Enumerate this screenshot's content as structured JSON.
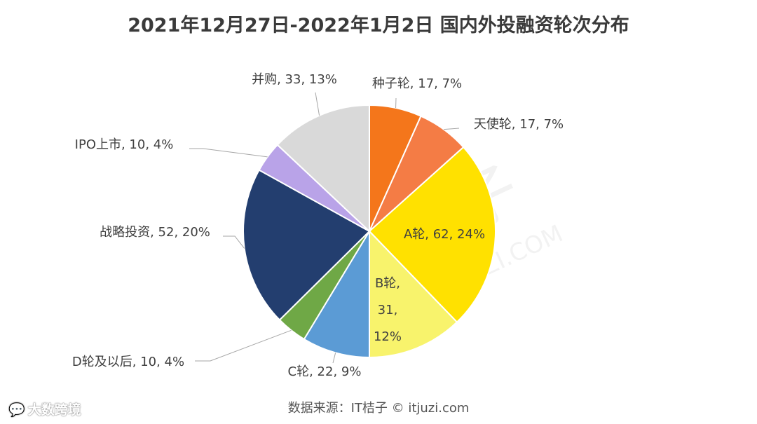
{
  "brand": {
    "icon": "chat-bubbles-icon",
    "label": "大数跨境"
  },
  "source": "数据来源：IT桔子 © itjuzi.com",
  "watermark": {
    "main": "桔子",
    "sub": "JUZI.COM"
  },
  "chart_data": {
    "type": "pie",
    "title": "2021年12月27日-2022年1月2日 国内外投融资轮次分布",
    "slices": [
      {
        "label": "种子轮",
        "value": 17,
        "percent": "7%",
        "color": "#F4761B"
      },
      {
        "label": "天使轮",
        "value": 17,
        "percent": "7%",
        "color": "#F47C45"
      },
      {
        "label": "A轮",
        "value": 62,
        "percent": "24%",
        "color": "#FFE100"
      },
      {
        "label": "B轮",
        "value": 31,
        "percent": "12%",
        "color": "#F8F36C"
      },
      {
        "label": "C轮",
        "value": 22,
        "percent": "9%",
        "color": "#5B9BD5"
      },
      {
        "label": "D轮及以后",
        "value": 10,
        "percent": "4%",
        "color": "#6FA846"
      },
      {
        "label": "战略投资",
        "value": 52,
        "percent": "20%",
        "color": "#233E6F"
      },
      {
        "label": "IPO上市",
        "value": 10,
        "percent": "4%",
        "color": "#B9A3E8"
      },
      {
        "label": "并购",
        "value": 33,
        "percent": "13%",
        "color": "#D9D9D9"
      }
    ]
  }
}
